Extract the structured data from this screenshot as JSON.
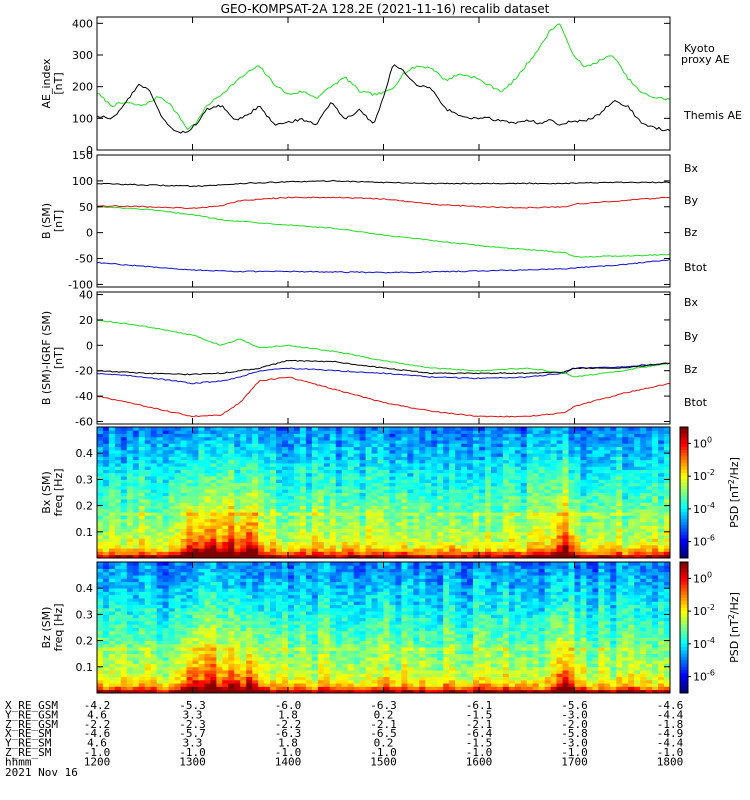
{
  "title": "GEO-KOMPSAT-2A 128.2E (2021-11-16) recalib dataset",
  "colors": {
    "black": "#000000",
    "green": "#22dd22",
    "red": "#dd1111",
    "blue": "#1111cc"
  },
  "xaxis": {
    "range": [
      1200,
      1800
    ],
    "ticks": [
      1200,
      1300,
      1400,
      1500,
      1600,
      1700,
      1800
    ],
    "ephem_rows": [
      {
        "label": "X_RE_GSM",
        "values": [
          "-4.2",
          "-5.3",
          "-6.0",
          "-6.3",
          "-6.1",
          "-5.6",
          "-4.6"
        ]
      },
      {
        "label": "Y_RE_GSM",
        "values": [
          "4.6",
          "3.3",
          "1.8",
          "0.2",
          "-1.5",
          "-3.0",
          "-4.4"
        ]
      },
      {
        "label": "Z_RE_GSM",
        "values": [
          "-2.2",
          "-2.3",
          "-2.2",
          "-2.1",
          "-2.1",
          "-2.0",
          "-1.8"
        ]
      },
      {
        "label": "X_RE_SM",
        "values": [
          "-4.6",
          "-5.7",
          "-6.3",
          "-6.5",
          "-6.4",
          "-5.8",
          "-4.9"
        ]
      },
      {
        "label": "Y_RE_SM",
        "values": [
          "4.6",
          "3.3",
          "1.8",
          "0.2",
          "-1.5",
          "-3.0",
          "-4.4"
        ]
      },
      {
        "label": "Z_RE_SM",
        "values": [
          "-1.0",
          "-1.0",
          "-1.0",
          "-1.0",
          "-1.0",
          "-1.0",
          "-1.0"
        ]
      },
      {
        "label": "hhmm",
        "values": [
          "1200",
          "1300",
          "1400",
          "1500",
          "1600",
          "1700",
          "1800"
        ]
      }
    ],
    "date": "2021 Nov 16"
  },
  "chart_data": [
    {
      "type": "line",
      "ylabel": "AE_index",
      "yunit": "[nT]",
      "ylim": [
        0,
        420
      ],
      "yticks": [
        "0",
        "100",
        "200",
        "300",
        "400"
      ],
      "ytick_values": [
        0,
        100,
        200,
        300,
        400
      ],
      "x": [
        1200,
        1215,
        1230,
        1245,
        1255,
        1265,
        1275,
        1285,
        1295,
        1305,
        1315,
        1330,
        1345,
        1360,
        1370,
        1385,
        1400,
        1415,
        1430,
        1445,
        1460,
        1475,
        1490,
        1500,
        1510,
        1520,
        1535,
        1550,
        1565,
        1580,
        1595,
        1610,
        1625,
        1640,
        1655,
        1665,
        1675,
        1685,
        1695,
        1710,
        1725,
        1740,
        1755,
        1770,
        1785,
        1800
      ],
      "series": [
        {
          "name": "Kyoto proxy AE",
          "color": "#22dd22",
          "values": [
            180,
            140,
            150,
            140,
            150,
            170,
            150,
            110,
            65,
            90,
            140,
            175,
            215,
            250,
            265,
            210,
            175,
            185,
            165,
            200,
            230,
            185,
            175,
            180,
            195,
            240,
            265,
            260,
            220,
            240,
            230,
            205,
            185,
            230,
            290,
            330,
            380,
            400,
            320,
            260,
            280,
            300,
            230,
            180,
            165,
            160
          ]
        },
        {
          "name": "Themis AE",
          "color": "#000000",
          "values": [
            110,
            95,
            150,
            210,
            185,
            120,
            80,
            55,
            60,
            85,
            130,
            140,
            95,
            115,
            140,
            80,
            90,
            95,
            80,
            150,
            95,
            130,
            80,
            170,
            270,
            250,
            205,
            195,
            130,
            110,
            100,
            100,
            90,
            85,
            95,
            80,
            95,
            75,
            90,
            90,
            110,
            155,
            140,
            85,
            70,
            60
          ]
        }
      ]
    },
    {
      "type": "line",
      "ylabel": "B (SM)",
      "yunit": "[nT]",
      "ylim": [
        -105,
        150
      ],
      "yticks": [
        "-100",
        "-50",
        "0",
        "50",
        "100",
        "150"
      ],
      "ytick_values": [
        -100,
        -50,
        0,
        50,
        100,
        150
      ],
      "legend": [
        "Bx",
        "By",
        "Bz",
        "Btot"
      ],
      "x": [
        1200,
        1250,
        1300,
        1330,
        1350,
        1400,
        1450,
        1500,
        1550,
        1600,
        1650,
        1690,
        1700,
        1750,
        1800
      ],
      "series": [
        {
          "name": "Bx",
          "color": "#1111cc",
          "values": [
            -58,
            -65,
            -72,
            -74,
            -75,
            -75,
            -76,
            -77,
            -76,
            -74,
            -72,
            -70,
            -68,
            -62,
            -52
          ]
        },
        {
          "name": "By",
          "color": "#22dd22",
          "values": [
            50,
            45,
            35,
            25,
            22,
            15,
            8,
            -5,
            -15,
            -25,
            -33,
            -38,
            -47,
            -45,
            -42
          ]
        },
        {
          "name": "Bz",
          "color": "#dd1111",
          "values": [
            52,
            50,
            47,
            52,
            62,
            68,
            68,
            65,
            55,
            50,
            48,
            50,
            55,
            62,
            68
          ]
        },
        {
          "name": "Btot",
          "color": "#000000",
          "values": [
            95,
            92,
            90,
            92,
            95,
            98,
            100,
            97,
            95,
            95,
            95,
            95,
            96,
            97,
            97
          ]
        }
      ]
    },
    {
      "type": "line",
      "ylabel": "B (SM)-IGRF (SM)",
      "yunit": "[nT]",
      "ylim": [
        -62,
        42
      ],
      "yticks": [
        "-60",
        "-40",
        "-20",
        "0",
        "20",
        "40"
      ],
      "ytick_values": [
        -60,
        -40,
        -20,
        0,
        20,
        40
      ],
      "legend": [
        "Bx",
        "By",
        "Bz",
        "Btot"
      ],
      "x": [
        1200,
        1250,
        1300,
        1330,
        1350,
        1370,
        1400,
        1450,
        1500,
        1550,
        1600,
        1650,
        1690,
        1700,
        1750,
        1800
      ],
      "series": [
        {
          "name": "Bx",
          "color": "#1111cc",
          "values": [
            -22,
            -25,
            -30,
            -28,
            -25,
            -20,
            -18,
            -20,
            -22,
            -25,
            -26,
            -25,
            -22,
            -18,
            -17,
            -14
          ]
        },
        {
          "name": "By",
          "color": "#22dd22",
          "values": [
            20,
            15,
            8,
            0,
            5,
            -2,
            0,
            -5,
            -12,
            -18,
            -20,
            -18,
            -22,
            -25,
            -20,
            -14
          ]
        },
        {
          "name": "Bz",
          "color": "#dd1111",
          "values": [
            -40,
            -48,
            -56,
            -55,
            -45,
            -28,
            -25,
            -35,
            -45,
            -52,
            -56,
            -56,
            -53,
            -48,
            -38,
            -30
          ]
        },
        {
          "name": "Btot",
          "color": "#000000",
          "values": [
            -20,
            -22,
            -23,
            -22,
            -20,
            -18,
            -12,
            -13,
            -18,
            -22,
            -22,
            -22,
            -21,
            -18,
            -18,
            -14
          ]
        }
      ]
    },
    {
      "type": "heatmap",
      "ylabel": "Bx (SM)",
      "yunit": "freq [Hz]",
      "ylim": [
        0,
        0.5
      ],
      "yticks": [
        "0.1",
        "0.2",
        "0.3",
        "0.4"
      ],
      "ytick_values": [
        0.1,
        0.2,
        0.3,
        0.4
      ],
      "colorbar_label": "PSD [nT",
      "colorbar_label_sup": "2",
      "colorbar_label_end": "/Hz]",
      "colorbar_ticks": [
        "10",
        "10",
        "10",
        "10"
      ],
      "colorbar_exps": [
        "0",
        "-2",
        "-4",
        "-6"
      ],
      "colorbar_tick_values": [
        0,
        -2,
        -4,
        -6
      ],
      "clim": [
        -7,
        1
      ],
      "active_times": [
        1300,
        1320,
        1340,
        1360,
        1690
      ]
    },
    {
      "type": "heatmap",
      "ylabel": "Bz (SM)",
      "yunit": "freq [Hz]",
      "ylim": [
        0,
        0.5
      ],
      "yticks": [
        "0.1",
        "0.2",
        "0.3",
        "0.4"
      ],
      "ytick_values": [
        0.1,
        0.2,
        0.3,
        0.4
      ],
      "colorbar_label": "PSD [nT",
      "colorbar_label_sup": "2",
      "colorbar_label_end": "/Hz]",
      "colorbar_ticks": [
        "10",
        "10",
        "10",
        "10"
      ],
      "colorbar_exps": [
        "0",
        "-2",
        "-4",
        "-6"
      ],
      "colorbar_tick_values": [
        0,
        -2,
        -4,
        -6
      ],
      "clim": [
        -7,
        1
      ],
      "active_times": [
        1300,
        1320,
        1340,
        1360,
        1690
      ]
    }
  ]
}
